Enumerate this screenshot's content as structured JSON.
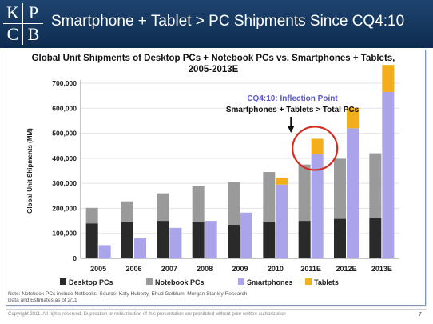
{
  "header": {
    "logo": [
      "K",
      "P",
      "C",
      "B"
    ],
    "title": "Smartphone + Tablet > PC Shipments Since CQ4:10"
  },
  "chart_data": {
    "type": "bar",
    "stacked": "two stacked groups per year: PCs (desktop + notebook) and mobile (smartphones + tablets)",
    "title_line1": "Global Unit Shipments of Desktop PCs + Notebook PCs vs. Smartphones + Tablets,",
    "title_line2": "2005-2013E",
    "ylabel": "Global Unit Shipments (MM)",
    "ylim": [
      0,
      700000
    ],
    "yticks": [
      "0",
      "100,000",
      "200,000",
      "300,000",
      "400,000",
      "500,000",
      "600,000",
      "700,000"
    ],
    "categories": [
      "2005",
      "2006",
      "2007",
      "2008",
      "2009",
      "2010",
      "2011E",
      "2012E",
      "2013E"
    ],
    "series": [
      {
        "name": "Desktop PCs",
        "color": "#2a2a2a",
        "group": "pc",
        "values": [
          140000,
          145000,
          150000,
          145000,
          135000,
          145000,
          150000,
          158000,
          162000
        ]
      },
      {
        "name": "Notebook PCs",
        "color": "#9a9a9a",
        "group": "pc",
        "values": [
          62000,
          83000,
          110000,
          143000,
          170000,
          200000,
          225000,
          240000,
          258000
        ]
      },
      {
        "name": "Smartphones",
        "color": "#aaa5ea",
        "group": "mobile",
        "values": [
          53000,
          80000,
          122000,
          150000,
          183000,
          295000,
          418000,
          520000,
          665000
        ]
      },
      {
        "name": "Tablets",
        "color": "#f2ae1c",
        "group": "mobile",
        "values": [
          0,
          0,
          0,
          0,
          0,
          28000,
          60000,
          82000,
          108000
        ]
      }
    ],
    "legend_position": "bottom",
    "grid": true,
    "annotation": {
      "line1": "CQ4:10: Inflection Point",
      "line2": "Smartphones + Tablets > Total PCs",
      "highlight_category": "2011E"
    }
  },
  "footnote": {
    "line1": "Note: Notebook PCs include Netbooks. Source: Katy Huberty, Ehud Gelblum, Morgan Stanley Research.",
    "line2": "Data and Estimates as of 2/11"
  },
  "copyright": "Copyright 2011. All rights reserved. Duplication or redistribution of this presentation are prohibited without prior written authorization",
  "page_number": "7"
}
